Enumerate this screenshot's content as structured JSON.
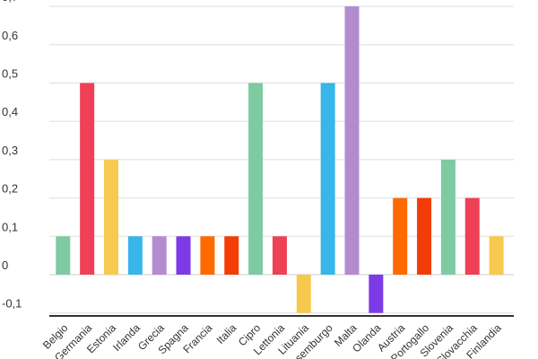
{
  "chart_data": {
    "type": "bar",
    "title": "",
    "xlabel": "",
    "ylabel": "",
    "ylim": [
      -0.1,
      0.7
    ],
    "y_ticks": [
      "-0,1",
      "0",
      "0,1",
      "0,2",
      "0,3",
      "0,4",
      "0,5",
      "0,6",
      "0,7"
    ],
    "categories": [
      "Belgio",
      "Germania",
      "Estonia",
      "Irlanda",
      "Grecia",
      "Spagna",
      "Francia",
      "Italia",
      "Cipro",
      "Lettonia",
      "Lituania",
      "Lussemburgo",
      "Malta",
      "Olanda",
      "Austria",
      "Portogallo",
      "Slovenia",
      "Slovacchia",
      "Finlandia"
    ],
    "values": [
      0.1,
      0.5,
      0.3,
      0.1,
      0.1,
      0.1,
      0.1,
      0.1,
      0.5,
      0.1,
      -0.1,
      0.5,
      0.7,
      -0.1,
      0.2,
      0.2,
      0.3,
      0.2,
      0.1
    ],
    "colors": [
      "#7ecba1",
      "#ef4056",
      "#f7ca4f",
      "#38b6ea",
      "#b28ccf",
      "#7c3be6",
      "#ff6a00",
      "#f43c06",
      "#7ecba1",
      "#ef4056",
      "#f7ca4f",
      "#38b6ea",
      "#b28ccf",
      "#7c3be6",
      "#ff6a00",
      "#f43c06",
      "#7ecba1",
      "#ef4056",
      "#f7ca4f"
    ],
    "grid": true,
    "legend": "none"
  }
}
